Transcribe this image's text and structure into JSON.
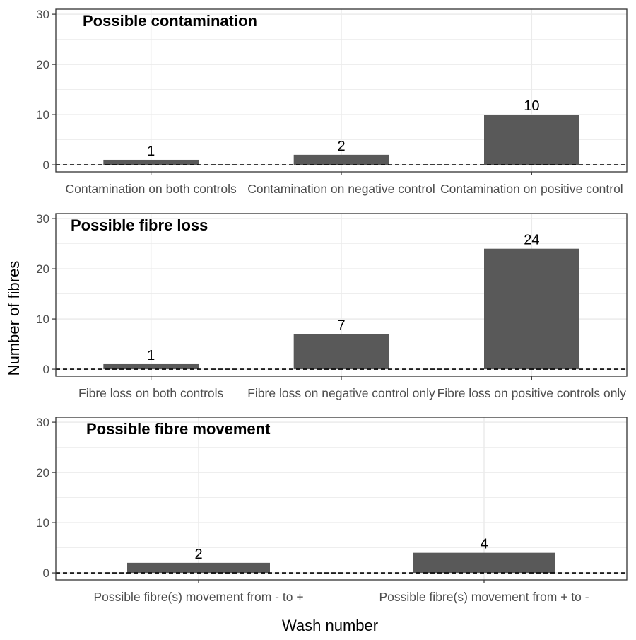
{
  "chart_data": {
    "type": "bar",
    "ylabel": "Number of fibres",
    "xlabel": "Wash number",
    "ylim": [
      -1.4,
      31
    ],
    "yticks": [
      0,
      10,
      20,
      30
    ],
    "grid": true,
    "reference_line": 0,
    "colors": {
      "bar": "#595959",
      "grid": "#ebebeb",
      "panel_border": "#333333",
      "text": "#4d4d4d",
      "label": "#000000"
    },
    "panels": [
      {
        "title": "Possible contamination",
        "categories": [
          "Contamination on both controls",
          "Contamination on negative control",
          "Contamination on positive control"
        ],
        "values": [
          1,
          2,
          10
        ]
      },
      {
        "title": "Possible fibre loss",
        "categories": [
          "Fibre loss on both controls",
          "Fibre loss on negative control only",
          "Fibre loss on positive controls only"
        ],
        "values": [
          1,
          7,
          24
        ]
      },
      {
        "title": "Possible fibre movement",
        "categories": [
          "Possible fibre(s) movement from - to +",
          "Possible fibre(s) movement from + to -"
        ],
        "values": [
          2,
          4
        ]
      }
    ]
  }
}
